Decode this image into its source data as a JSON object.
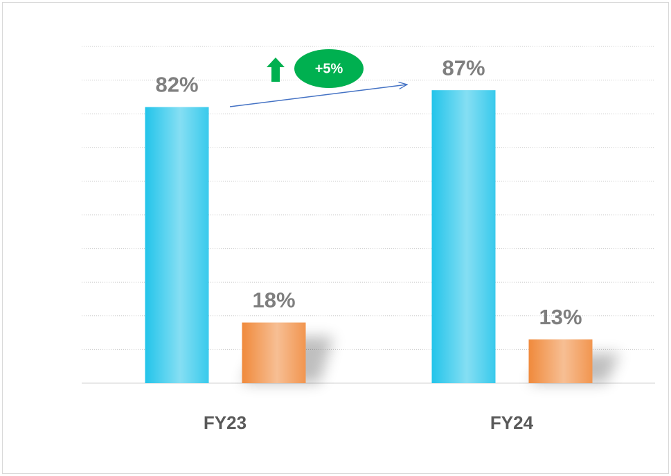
{
  "chart_data": {
    "type": "bar",
    "categories": [
      "FY23",
      "FY24"
    ],
    "series": [
      {
        "color": "#22c4ea",
        "values": [
          82,
          87
        ],
        "value_labels": [
          "82%",
          "87%"
        ]
      },
      {
        "color": "#f08a3c",
        "values": [
          18,
          13
        ],
        "value_labels": [
          "18%",
          "13%"
        ]
      }
    ],
    "ylim": [
      0,
      100
    ],
    "yticks": [
      0,
      10,
      20,
      30,
      40,
      50,
      60,
      70,
      80,
      90,
      100
    ],
    "grid": true,
    "annotation": {
      "text": "+5%"
    }
  }
}
